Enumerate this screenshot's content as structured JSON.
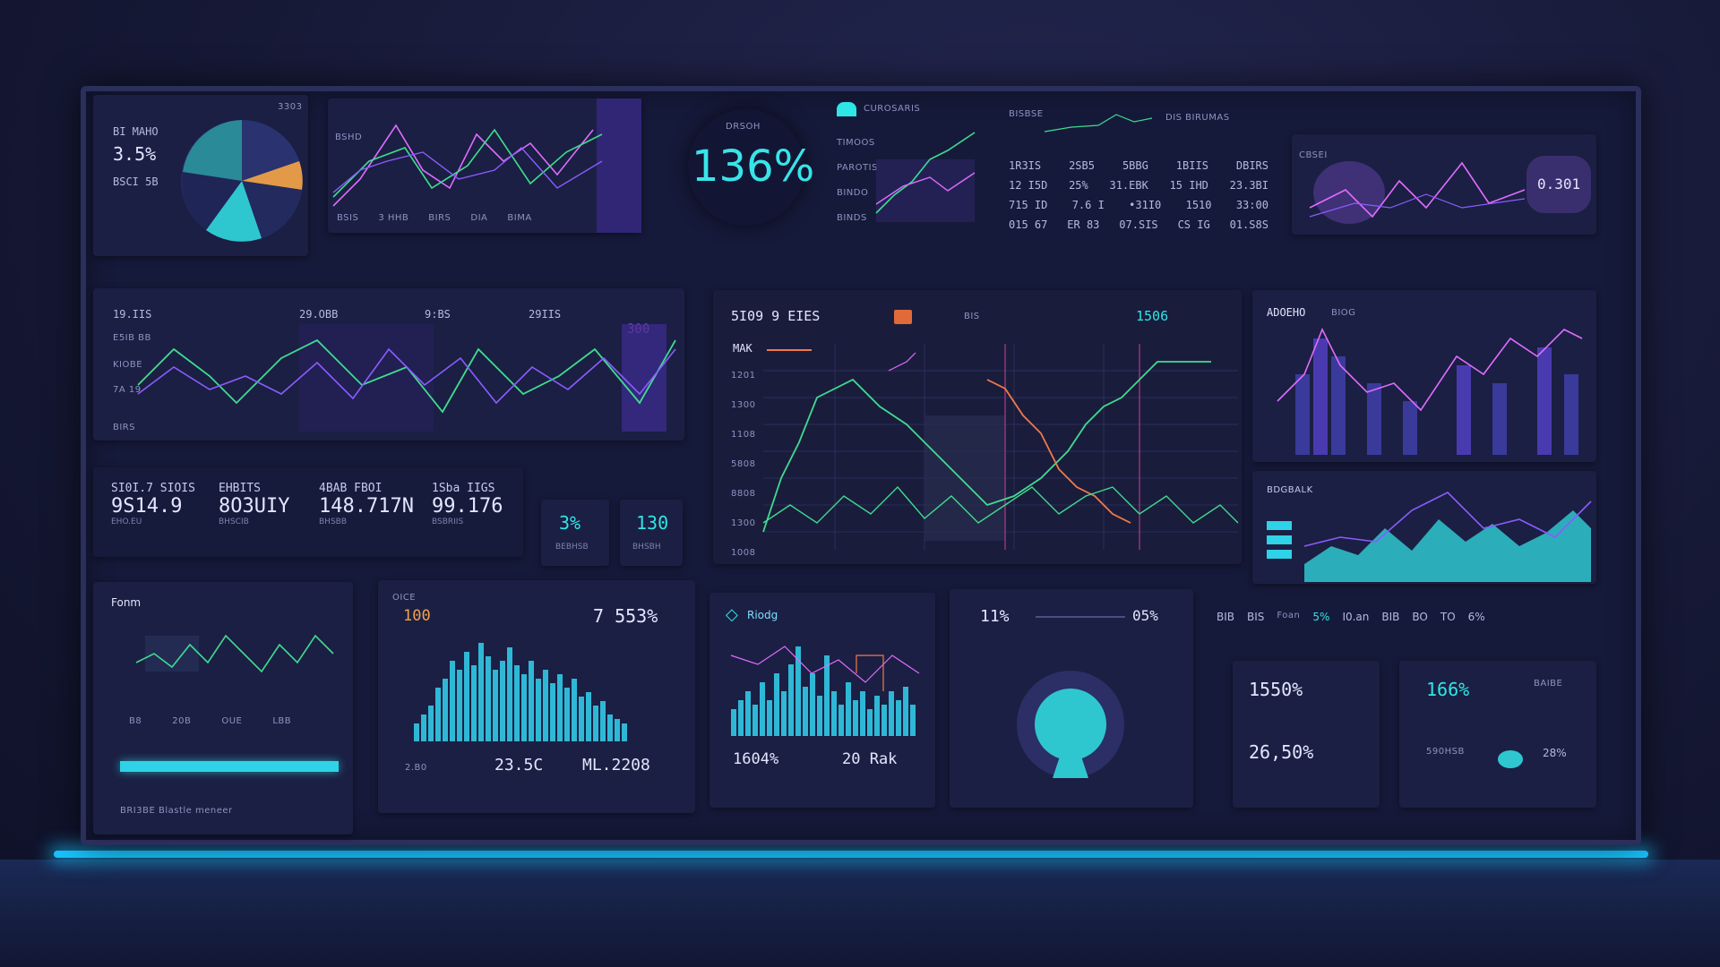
{
  "pie_panel": {
    "label_top": "BI MAHO",
    "value": "3.5%",
    "sub": "BSCI 5B",
    "corner": "3303"
  },
  "top_line_panel": {
    "label": "BSHD",
    "axis": [
      "BSIS",
      "3 HHB",
      "BIRS",
      "DIA",
      "BIMA"
    ]
  },
  "ring_panel": {
    "label": "DRSOH",
    "value": "136%"
  },
  "mini_chart_panel": {
    "title": "CUROSARIS",
    "rows": [
      "TIMOOS",
      "PAROTIS",
      "BINDO",
      "BINDS"
    ]
  },
  "table_panel": {
    "title_a": "BISBSE",
    "title_b": "DIS  BIRUMAS",
    "rows": [
      [
        "1R3IS",
        "2SB5",
        "5BBG",
        "1BIIS",
        "DBIRS"
      ],
      [
        "12 I5D",
        "25%",
        "31.EBK",
        "15 IHD",
        "23.3BI"
      ],
      [
        "715 ID",
        "7.6 I",
        "•31I0",
        "1510",
        "33:00"
      ],
      [
        "015 67",
        "ER 83",
        "07.SIS",
        "CS IG",
        "01.S8S"
      ]
    ]
  },
  "top_right_panel": {
    "label": "CBSEI",
    "value": "0.301"
  },
  "wave_panel": {
    "labels": [
      "19.IIS",
      "29.OBB",
      "9:BS",
      "29IIS"
    ],
    "badge": "300",
    "y_labels": [
      "E5IB BB",
      "KIOBE",
      "7A 19",
      "BIRS"
    ]
  },
  "kpis": [
    {
      "label": "SI0I.7 SIOIS",
      "value": "9S14.9",
      "sub": "EHO.EU"
    },
    {
      "label": "EHBITS",
      "value": "8O3UIY",
      "sub": "BHSCIB"
    },
    {
      "label": "4BAB FBOI",
      "value": "148.717N",
      "sub": "BHSBB"
    },
    {
      "label": "1Sba IIGS",
      "value": "99.176",
      "sub": "BSBRIIS"
    }
  ],
  "small_tiles": [
    {
      "value": "3%",
      "sub": "BEBHSB"
    },
    {
      "value": "130",
      "sub": "BHSBH"
    }
  ],
  "main_chart": {
    "title": "5I09 9  EIES",
    "marker": "BIS",
    "value": "1506",
    "label": "MAK",
    "y_labels": [
      "1201",
      "1300",
      "1108",
      "5808",
      "8808",
      "1300",
      "1008"
    ]
  },
  "right_bars_panel": {
    "title": "ADOEHO",
    "sub": "BIOG"
  },
  "area_panel": {
    "title": "BDGBALK"
  },
  "bottom_left": {
    "title": "Fonm",
    "axis": [
      "B8",
      "20B",
      "OUE",
      "LBB"
    ],
    "footer": "BRI3BE  Blastle meneer"
  },
  "histogram": {
    "tag": "OICE",
    "left_value": "100",
    "right_value": "7 553%",
    "footer_a": "23.5C",
    "footer_b": "ML.2208",
    "footer_c": "2.B0"
  },
  "cyan_histogram": {
    "title": "Riodg",
    "value_a": "1604%",
    "value_b": "20 Rak"
  },
  "donut_panel": {
    "value_a": "11%",
    "value_b": "05%"
  },
  "stat_tiles": {
    "header": [
      "BIB",
      "BIS",
      "Foan",
      "5%",
      "I0.an",
      "BIB",
      "BO",
      "TO",
      "6%"
    ],
    "a": {
      "value_top": "1550%",
      "value_bottom": "26,50%"
    },
    "b": {
      "value_top": "166%",
      "side": "BAIBE",
      "small": "590HSB",
      "unit": "28%"
    }
  },
  "colors": {
    "cyan": "#2ee6e6",
    "purple": "#8a5cff",
    "pink": "#e06cff",
    "orange": "#f0a24a",
    "green": "#3fdc8f",
    "bg": "#161a3a"
  }
}
